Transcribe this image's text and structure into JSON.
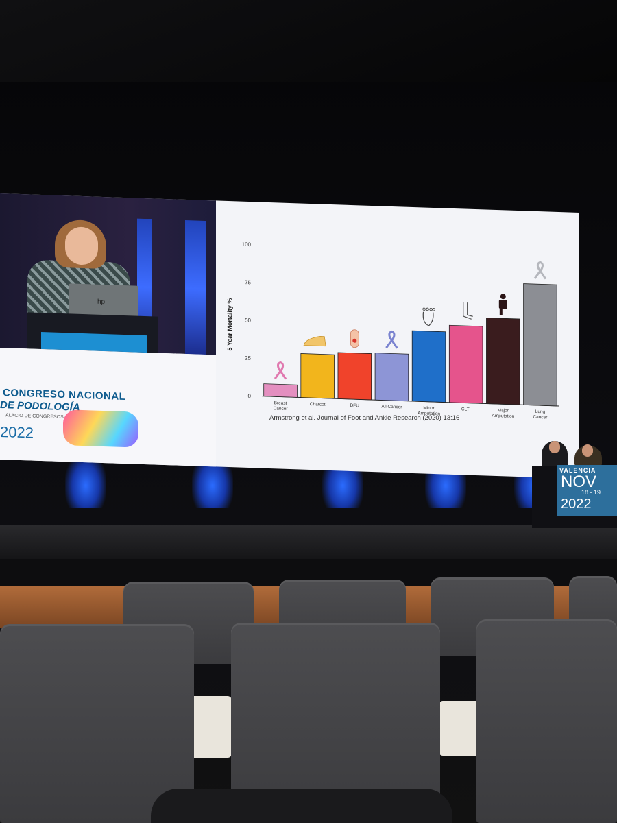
{
  "scene": {
    "description_tag": "conference-stage",
    "colors": {
      "accent_blue": "#2b6cff",
      "screen_bg": "#f3f4f8",
      "wood": "#b06b3a",
      "seat": "#444447"
    }
  },
  "slide": {
    "citation": "Armstrong et al. Journal of Foot and Ankle Research (2020) 13:16",
    "chart_data": {
      "type": "bar",
      "ylabel": "5 Year Mortality %",
      "xlabel": "",
      "ylim": [
        0,
        100
      ],
      "yticks": [
        "100",
        "75",
        "50",
        "25",
        "0"
      ],
      "categories": [
        [
          "Breast",
          "Cancer"
        ],
        [
          "Charcot"
        ],
        [
          "DFU"
        ],
        [
          "All Cancer"
        ],
        [
          "Minor",
          "Amputation"
        ],
        [
          "CLTI"
        ],
        [
          "Major",
          "Amputation"
        ],
        [
          "Lung",
          "Cancer"
        ]
      ],
      "values": [
        8.2,
        29.0,
        30.5,
        31.0,
        46.5,
        50.9,
        56.6,
        80.0
      ],
      "colors": [
        "#e48fc0",
        "#f2b51c",
        "#f0432b",
        "#8d95d6",
        "#1f6fc9",
        "#e5548c",
        "#3a1c1e",
        "#8c8e94"
      ],
      "icons": [
        "pink-ribbon-icon",
        "foot-icon",
        "foot-ulcer-icon",
        "blue-ribbon-icon",
        "toes-icon",
        "leg-icon",
        "amputee-figure-icon",
        "gray-ribbon-icon"
      ],
      "grid": false
    }
  },
  "event": {
    "line1": "CONGRESO NACIONAL",
    "line2": "DE PODOLOGÍA",
    "line3": "ALACIO DE CONGRESOS",
    "year": "2022",
    "laptop_logo": "hp"
  },
  "panel_sign": {
    "city": "VALENCIA",
    "month": "NOV",
    "days": "18 - 19",
    "year": "2022"
  }
}
